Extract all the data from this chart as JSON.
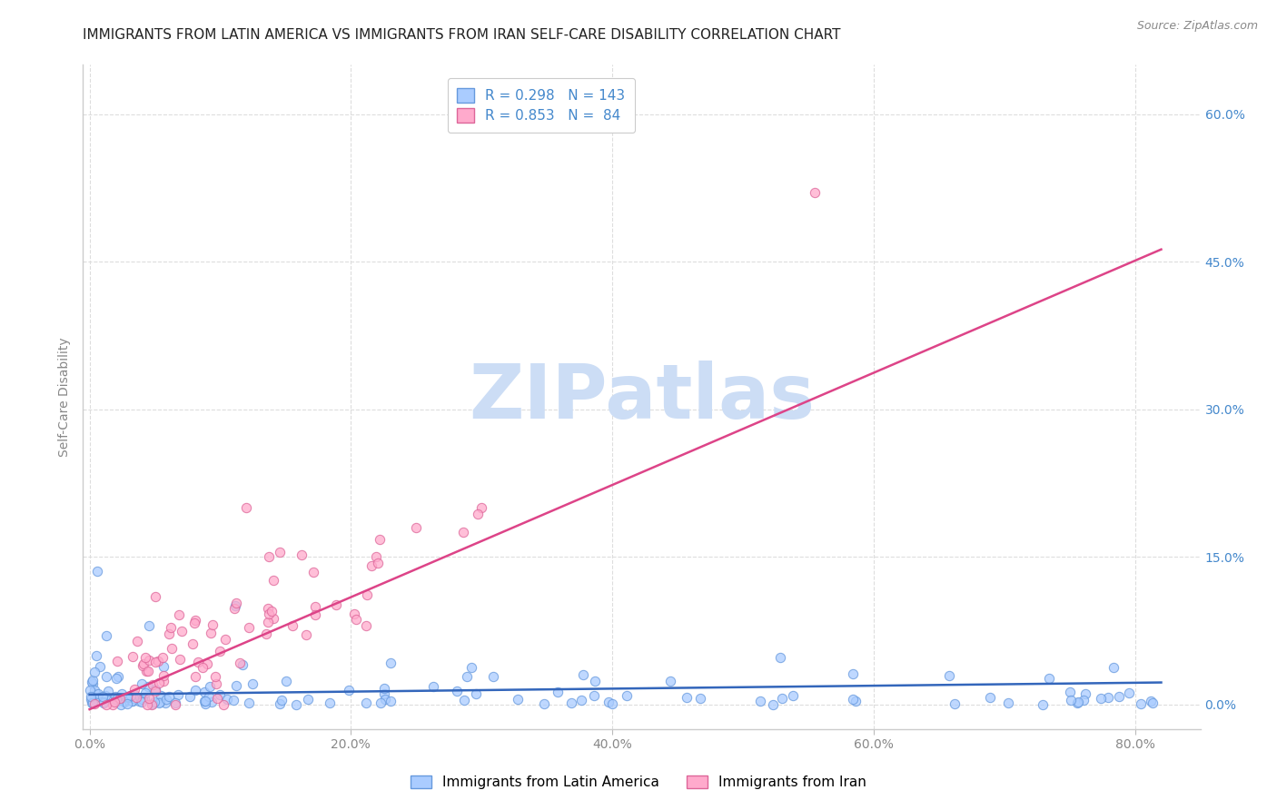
{
  "title": "IMMIGRANTS FROM LATIN AMERICA VS IMMIGRANTS FROM IRAN SELF-CARE DISABILITY CORRELATION CHART",
  "source": "Source: ZipAtlas.com",
  "ylabel": "Self-Care Disability",
  "xlabel_ticks": [
    "0.0%",
    "20.0%",
    "40.0%",
    "60.0%",
    "80.0%"
  ],
  "xlabel_vals": [
    0.0,
    0.2,
    0.4,
    0.6,
    0.8
  ],
  "ytick_labels": [
    "0.0%",
    "15.0%",
    "30.0%",
    "45.0%",
    "60.0%"
  ],
  "ytick_vals": [
    0.0,
    0.15,
    0.3,
    0.45,
    0.6
  ],
  "xlim": [
    -0.005,
    0.85
  ],
  "ylim": [
    -0.025,
    0.65
  ],
  "series1_label": "Immigrants from Latin America",
  "series2_label": "Immigrants from Iran",
  "series1_color": "#aaccff",
  "series2_color": "#ffaacc",
  "series1_edge_color": "#6699dd",
  "series2_edge_color": "#dd6699",
  "series1_line_color": "#3366bb",
  "series2_line_color": "#dd4488",
  "R1": 0.298,
  "N1": 143,
  "R2": 0.853,
  "N2": 84,
  "title_fontsize": 11,
  "source_fontsize": 9,
  "watermark": "ZIPatlas",
  "watermark_color": "#ccddf5",
  "watermark_fontsize": 60
}
